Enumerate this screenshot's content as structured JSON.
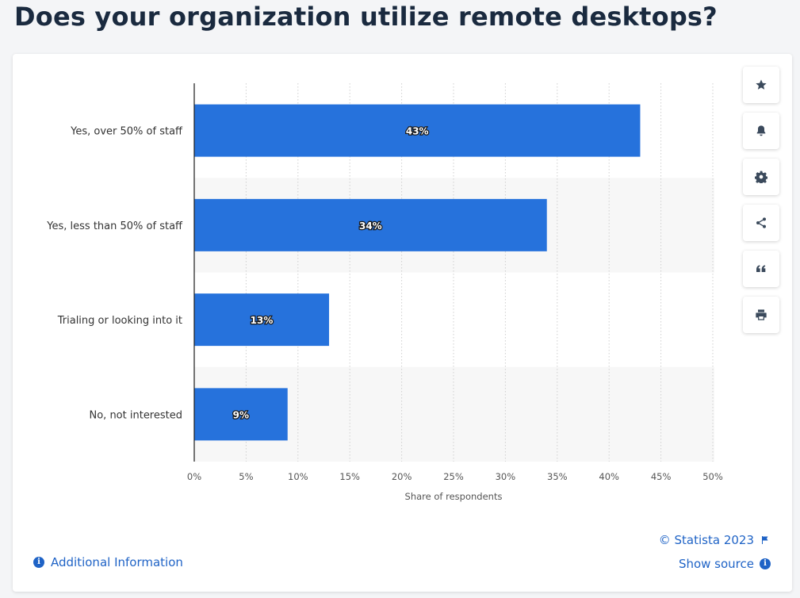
{
  "page": {
    "title": "Does your organization utilize remote desktops?"
  },
  "toolbar": {
    "icons": [
      "star-icon",
      "bell-icon",
      "gear-icon",
      "share-icon",
      "quote-icon",
      "print-icon"
    ]
  },
  "footer": {
    "additional_info": "Additional Information",
    "copyright": "© Statista 2023",
    "show_source": "Show source"
  },
  "colors": {
    "bar": "#2672dc",
    "link": "#1f63c6",
    "title": "#1a2a3f",
    "band": "#f7f7f7"
  },
  "chart_data": {
    "type": "bar",
    "orientation": "horizontal",
    "categories": [
      "Yes, over 50% of staff",
      "Yes, less than 50% of staff",
      "Trialing or looking into it",
      "No, not interested"
    ],
    "values": [
      43,
      34,
      13,
      9
    ],
    "value_labels": [
      "43%",
      "34%",
      "13%",
      "9%"
    ],
    "xlabel": "Share of respondents",
    "ylabel": "",
    "xlim": [
      0,
      50
    ],
    "xticks": [
      "0%",
      "5%",
      "10%",
      "15%",
      "20%",
      "25%",
      "30%",
      "35%",
      "40%",
      "45%",
      "50%"
    ],
    "grid": "vertical dotted",
    "legend": "none"
  }
}
